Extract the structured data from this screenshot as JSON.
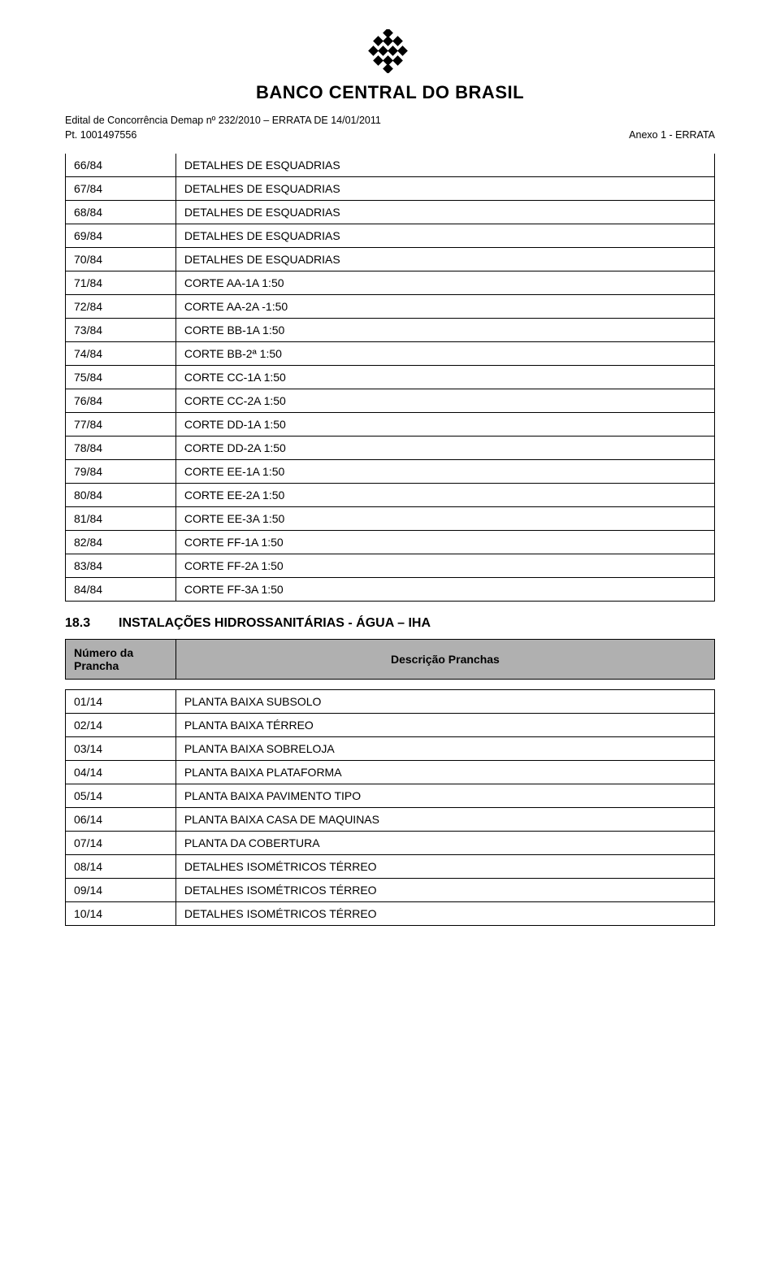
{
  "colors": {
    "text": "#000000",
    "background": "#ffffff",
    "header_bg": "#b0b0b0",
    "border": "#000000"
  },
  "fonts": {
    "body_family": "Arial, Helvetica, sans-serif",
    "body_size_pt": 10.5,
    "heading_size_pt": 12,
    "bank_name_size_pt": 16
  },
  "header": {
    "bank_name": "BANCO CENTRAL DO BRASIL",
    "line1": "Edital de Concorrência Demap nº 232/2010 – ERRATA DE 14/01/2011",
    "line2_left": "Pt. 1001497556",
    "line2_right": "Anexo 1 - ERRATA"
  },
  "table1": {
    "col_widths_pct": [
      17,
      83
    ],
    "rows": [
      [
        "66/84",
        "DETALHES DE ESQUADRIAS"
      ],
      [
        "67/84",
        "DETALHES DE ESQUADRIAS"
      ],
      [
        "68/84",
        "DETALHES DE ESQUADRIAS"
      ],
      [
        "69/84",
        "DETALHES DE ESQUADRIAS"
      ],
      [
        "70/84",
        "DETALHES DE ESQUADRIAS"
      ],
      [
        "71/84",
        "CORTE AA-1A  1:50"
      ],
      [
        "72/84",
        "CORTE AA-2A -1:50"
      ],
      [
        "73/84",
        "CORTE BB-1A   1:50"
      ],
      [
        "74/84",
        "CORTE BB-2ª  1:50"
      ],
      [
        "75/84",
        "CORTE CC-1A 1:50"
      ],
      [
        "76/84",
        "CORTE CC-2A 1:50"
      ],
      [
        "77/84",
        "CORTE DD-1A 1:50"
      ],
      [
        "78/84",
        "CORTE DD-2A 1:50"
      ],
      [
        "79/84",
        "CORTE EE-1A 1:50"
      ],
      [
        "80/84",
        "CORTE EE-2A 1:50"
      ],
      [
        "81/84",
        "CORTE EE-3A 1:50"
      ],
      [
        "82/84",
        "CORTE FF-1A 1:50"
      ],
      [
        "83/84",
        "CORTE FF-2A 1:50"
      ],
      [
        "84/84",
        "CORTE FF-3A 1:50"
      ]
    ]
  },
  "section": {
    "number": "18.3",
    "title": "INSTALAÇÕES HIDROSSANITÁRIAS - ÁGUA – IHA"
  },
  "table2": {
    "header_left": "Número da Prancha",
    "header_right": "Descrição Pranchas",
    "col_widths_pct": [
      17,
      83
    ],
    "rows": [
      [
        "01/14",
        "PLANTA BAIXA SUBSOLO"
      ],
      [
        "02/14",
        "PLANTA BAIXA TÉRREO"
      ],
      [
        "03/14",
        "PLANTA BAIXA SOBRELOJA"
      ],
      [
        "04/14",
        "PLANTA BAIXA PLATAFORMA"
      ],
      [
        "05/14",
        "PLANTA BAIXA PAVIMENTO TIPO"
      ],
      [
        "06/14",
        "PLANTA BAIXA CASA DE MAQUINAS"
      ],
      [
        "07/14",
        "PLANTA DA COBERTURA"
      ],
      [
        "08/14",
        "DETALHES ISOMÉTRICOS TÉRREO"
      ],
      [
        "09/14",
        "DETALHES ISOMÉTRICOS TÉRREO"
      ],
      [
        "10/14",
        "DETALHES ISOMÉTRICOS TÉRREO"
      ]
    ]
  }
}
